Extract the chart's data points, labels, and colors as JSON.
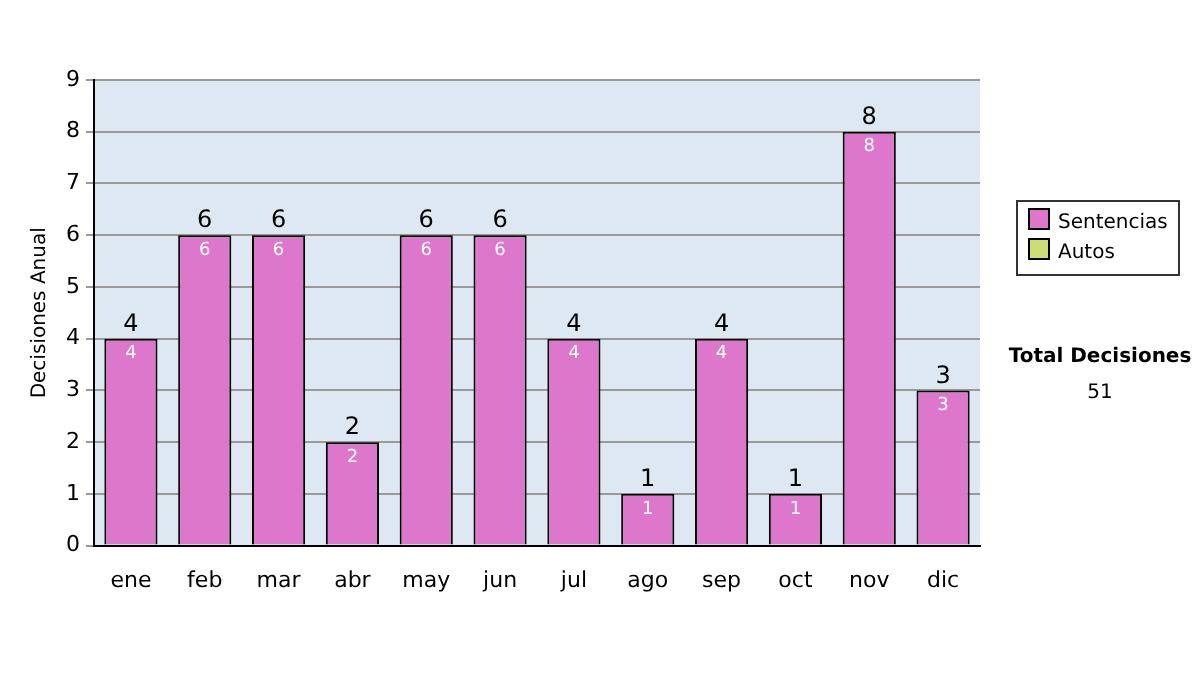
{
  "chart_data": {
    "type": "bar",
    "ylabel": "Decisiones Anual",
    "categories": [
      "ene",
      "feb",
      "mar",
      "abr",
      "may",
      "jun",
      "jul",
      "ago",
      "sep",
      "oct",
      "nov",
      "dic"
    ],
    "series": [
      {
        "name": "Sentencias",
        "color": "#dd77cc",
        "values": [
          4,
          6,
          6,
          2,
          6,
          6,
          4,
          1,
          4,
          1,
          8,
          3
        ],
        "value_labels": [
          "4",
          "6",
          "6",
          "2",
          "6",
          "6",
          "4",
          "1",
          "4",
          "1",
          "8",
          "3"
        ]
      },
      {
        "name": "Autos",
        "color": "#ccdd77",
        "values": [
          0,
          0,
          0,
          0,
          0,
          0,
          0,
          0,
          0,
          0,
          0,
          0
        ]
      }
    ],
    "stacked": true,
    "totals": [
      "4",
      "6",
      "6",
      "2",
      "6",
      "6",
      "4",
      "1",
      "4",
      "1",
      "8",
      "3"
    ],
    "ylim": [
      0,
      9
    ],
    "yticks": [
      0,
      1,
      2,
      3,
      4,
      5,
      6,
      7,
      8,
      9
    ],
    "grid": "y",
    "legend": "right",
    "annotations": [
      "Total Decisiones",
      "51"
    ]
  }
}
